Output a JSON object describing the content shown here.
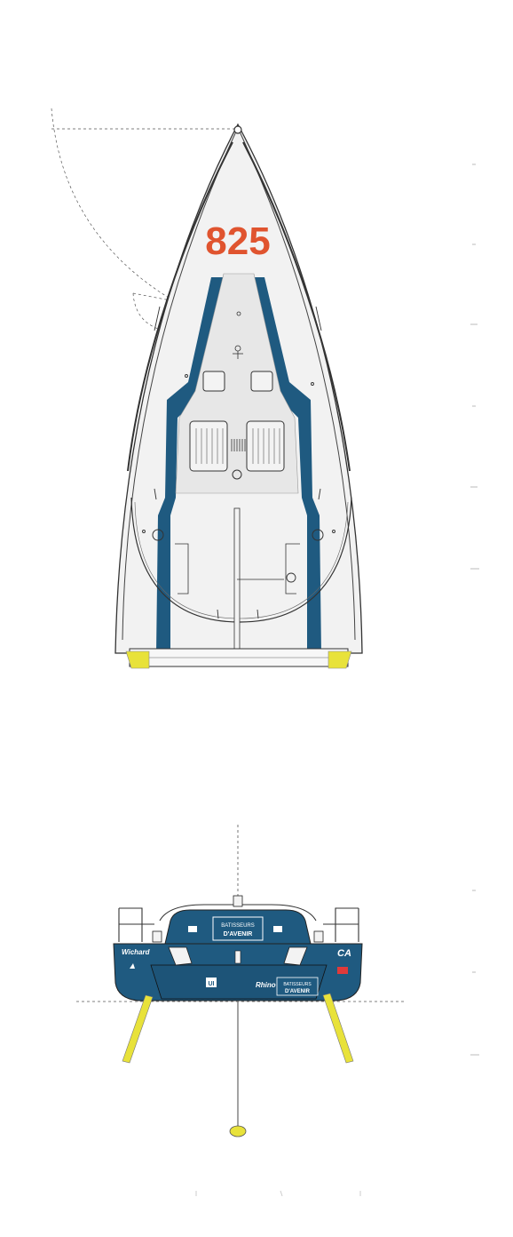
{
  "top_view": {
    "sail_number": "825",
    "deck_stickers": [
      "",
      ""
    ]
  },
  "stern_view": {
    "panel_left_title": "BATISSEURS D'AVENIR",
    "panel_left_line1": "BATISSEURS",
    "panel_left_line2": "D'AVENIR",
    "panel_right_line1": "BATISSEURS",
    "panel_right_line2": "D'AVENIR",
    "brand_left": "Wichard",
    "brand_center": "Rhino",
    "ca_logo": "CA",
    "small_logo_left": "",
    "small_logo_center": "UI"
  },
  "colors": {
    "hull_blue": "#1f5a80",
    "deck_light": "#f1f1f1",
    "accent_yellow": "#e8e23a",
    "sail_number_red": "#e0542f",
    "line_dark": "#333333"
  },
  "icons": {
    "winch": "winch-icon",
    "hatch": "hatch-icon",
    "figure": "crew-figure-icon"
  }
}
